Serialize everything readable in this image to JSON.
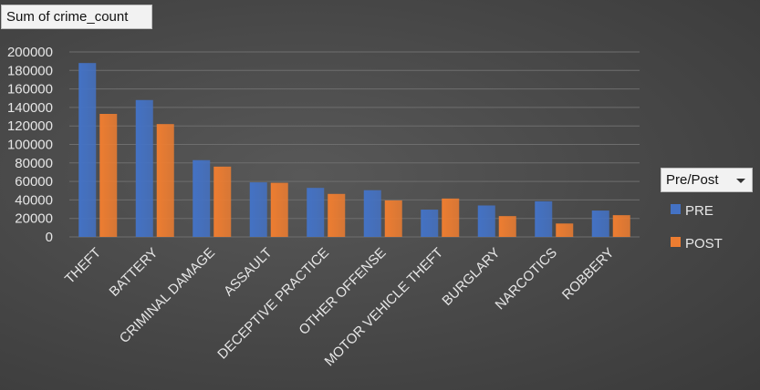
{
  "field_button": {
    "label": "Sum of crime_count"
  },
  "legend": {
    "filter_label": "Pre/Post",
    "items": [
      {
        "label": "PRE",
        "color": "#4472c4"
      },
      {
        "label": "POST",
        "color": "#ed7d31"
      }
    ]
  },
  "chart_data": {
    "type": "bar",
    "title": "",
    "xlabel": "",
    "ylabel": "",
    "ylim": [
      0,
      200000
    ],
    "yticks": [
      "200000",
      "180000",
      "160000",
      "140000",
      "120000",
      "100000",
      "80000",
      "60000",
      "40000",
      "20000",
      "0"
    ],
    "grid": true,
    "legend_position": "right",
    "categories": [
      "THEFT",
      "BATTERY",
      "CRIMINAL DAMAGE",
      "ASSAULT",
      "DECEPTIVE PRACTICE",
      "OTHER OFFENSE",
      "MOTOR VEHICLE THEFT",
      "BURGLARY",
      "NARCOTICS",
      "ROBBERY"
    ],
    "series": [
      {
        "name": "PRE",
        "color": "#4472c4",
        "values": [
          188000,
          148000,
          83000,
          59000,
          53000,
          50500,
          29500,
          34000,
          38500,
          28500
        ]
      },
      {
        "name": "POST",
        "color": "#ed7d31",
        "values": [
          133000,
          122000,
          76000,
          58500,
          46500,
          39500,
          41500,
          22500,
          14500,
          23500
        ]
      }
    ]
  }
}
